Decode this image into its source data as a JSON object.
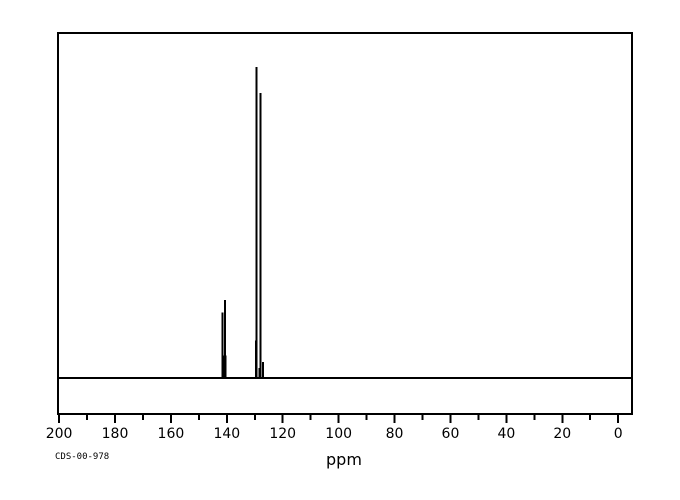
{
  "page": {
    "background_color": "#ffffff",
    "foreground_color": "#000000"
  },
  "footer": {
    "spectrum_id": "CDS-00-978"
  },
  "chart_data": {
    "type": "line",
    "subtype": "13C-NMR-spectrum",
    "title": "",
    "xlabel": "ppm",
    "ylabel": "",
    "grid": false,
    "legend": false,
    "line_color": "#000000",
    "background_color": "#ffffff",
    "x_axis": {
      "min": 0,
      "max": 200,
      "reversed": true,
      "major_tick_step": 20,
      "minor_tick_step": 10,
      "tick_labels": [
        "200",
        "180",
        "160",
        "140",
        "120",
        "100",
        "80",
        "60",
        "40",
        "20",
        "0"
      ]
    },
    "y_axis": {
      "visible": false
    },
    "baseline": true,
    "peaks": [
      {
        "ppm": 141.6,
        "intensity": 0.21
      },
      {
        "ppm": 141.1,
        "intensity": 0.072,
        "width": 5
      },
      {
        "ppm": 140.6,
        "intensity": 0.251
      },
      {
        "ppm": 129.6,
        "intensity": 0.12
      },
      {
        "ppm": 129.3,
        "intensity": 1.0
      },
      {
        "ppm": 128.4,
        "intensity": 0.032
      },
      {
        "ppm": 127.9,
        "intensity": 0.916
      },
      {
        "ppm": 127.1,
        "intensity": 0.051
      }
    ],
    "annotations": {
      "spectrum_id": "CDS-00-978"
    }
  }
}
